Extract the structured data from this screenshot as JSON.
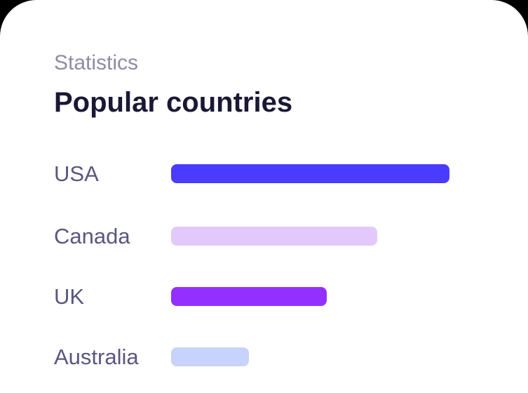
{
  "card": {
    "eyebrow": "Statistics",
    "title": "Popular countries"
  },
  "countries": [
    {
      "label": "USA",
      "value": 100,
      "color": "#4a3cff"
    },
    {
      "label": "Canada",
      "value": 74,
      "color": "#e2c8fb"
    },
    {
      "label": "UK",
      "value": 56,
      "color": "#9330ff"
    },
    {
      "label": "Australia",
      "value": 28,
      "color": "#c8d3fb"
    }
  ]
}
